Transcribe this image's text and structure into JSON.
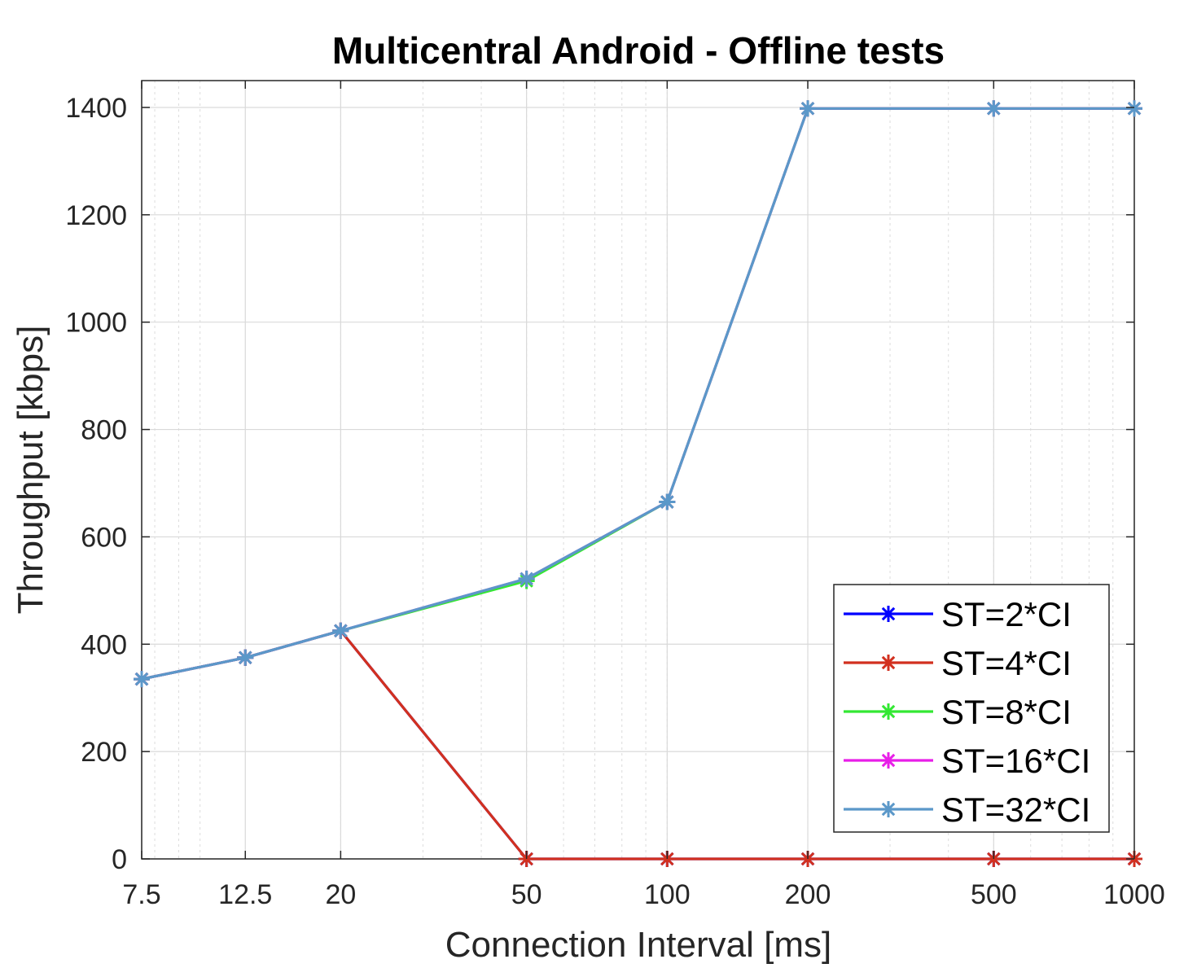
{
  "chart_data": {
    "type": "line",
    "title": "Multicentral Android - Offline tests",
    "xlabel": "Connection Interval [ms]",
    "ylabel": "Throughput [kbps]",
    "x_scale": "log",
    "x_ticks": [
      7.5,
      12.5,
      20,
      50,
      100,
      200,
      500,
      1000
    ],
    "x_tick_labels": [
      "7.5",
      "12.5",
      "20",
      "50",
      "100",
      "200",
      "500",
      "1000"
    ],
    "xlim": [
      7.5,
      1000
    ],
    "y_ticks": [
      0,
      200,
      400,
      600,
      800,
      1000,
      1200,
      1400
    ],
    "y_tick_labels": [
      "0",
      "200",
      "400",
      "600",
      "800",
      "1000",
      "1200",
      "1400"
    ],
    "ylim": [
      0,
      1450
    ],
    "grid": true,
    "minor_grid": true,
    "legend_position": "bottom-right",
    "x": [
      7.5,
      12.5,
      20,
      50,
      100,
      200,
      500,
      1000
    ],
    "series": [
      {
        "name": "ST=2*CI",
        "color": "#0000ff",
        "values": [
          335,
          375,
          425,
          0,
          0,
          0,
          0,
          0
        ]
      },
      {
        "name": "ST=4*CI",
        "color": "#d2301f",
        "values": [
          335,
          375,
          425,
          0,
          0,
          0,
          0,
          0
        ]
      },
      {
        "name": "ST=8*CI",
        "color": "#33e833",
        "values": [
          335,
          375,
          425,
          518,
          665,
          1398,
          1398,
          1398
        ]
      },
      {
        "name": "ST=16*CI",
        "color": "#e81ee8",
        "values": [
          335,
          375,
          425,
          522,
          665,
          1398,
          1398,
          1398
        ]
      },
      {
        "name": "ST=32*CI",
        "color": "#5b98c9",
        "values": [
          335,
          375,
          425,
          522,
          665,
          1398,
          1398,
          1398
        ]
      }
    ]
  }
}
